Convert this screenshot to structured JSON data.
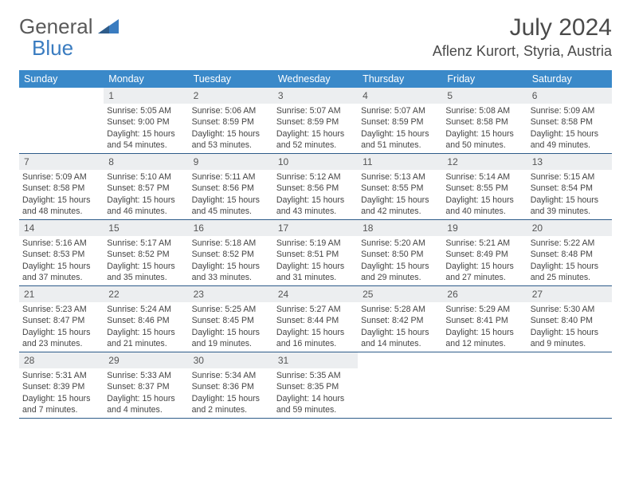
{
  "logo": {
    "text1": "General",
    "text2": "Blue"
  },
  "title": "July 2024",
  "location": "Aflenz Kurort, Styria, Austria",
  "colors": {
    "header_bg": "#3a89c9",
    "header_text": "#ffffff",
    "daynum_bg": "#eceef0",
    "border": "#2e5c8a",
    "logo_gray": "#5a5a5a",
    "logo_blue": "#3a7cc0"
  },
  "weekdays": [
    "Sunday",
    "Monday",
    "Tuesday",
    "Wednesday",
    "Thursday",
    "Friday",
    "Saturday"
  ],
  "weeks": [
    [
      null,
      {
        "n": "1",
        "sr": "Sunrise: 5:05 AM",
        "ss": "Sunset: 9:00 PM",
        "dl": "Daylight: 15 hours and 54 minutes."
      },
      {
        "n": "2",
        "sr": "Sunrise: 5:06 AM",
        "ss": "Sunset: 8:59 PM",
        "dl": "Daylight: 15 hours and 53 minutes."
      },
      {
        "n": "3",
        "sr": "Sunrise: 5:07 AM",
        "ss": "Sunset: 8:59 PM",
        "dl": "Daylight: 15 hours and 52 minutes."
      },
      {
        "n": "4",
        "sr": "Sunrise: 5:07 AM",
        "ss": "Sunset: 8:59 PM",
        "dl": "Daylight: 15 hours and 51 minutes."
      },
      {
        "n": "5",
        "sr": "Sunrise: 5:08 AM",
        "ss": "Sunset: 8:58 PM",
        "dl": "Daylight: 15 hours and 50 minutes."
      },
      {
        "n": "6",
        "sr": "Sunrise: 5:09 AM",
        "ss": "Sunset: 8:58 PM",
        "dl": "Daylight: 15 hours and 49 minutes."
      }
    ],
    [
      {
        "n": "7",
        "sr": "Sunrise: 5:09 AM",
        "ss": "Sunset: 8:58 PM",
        "dl": "Daylight: 15 hours and 48 minutes."
      },
      {
        "n": "8",
        "sr": "Sunrise: 5:10 AM",
        "ss": "Sunset: 8:57 PM",
        "dl": "Daylight: 15 hours and 46 minutes."
      },
      {
        "n": "9",
        "sr": "Sunrise: 5:11 AM",
        "ss": "Sunset: 8:56 PM",
        "dl": "Daylight: 15 hours and 45 minutes."
      },
      {
        "n": "10",
        "sr": "Sunrise: 5:12 AM",
        "ss": "Sunset: 8:56 PM",
        "dl": "Daylight: 15 hours and 43 minutes."
      },
      {
        "n": "11",
        "sr": "Sunrise: 5:13 AM",
        "ss": "Sunset: 8:55 PM",
        "dl": "Daylight: 15 hours and 42 minutes."
      },
      {
        "n": "12",
        "sr": "Sunrise: 5:14 AM",
        "ss": "Sunset: 8:55 PM",
        "dl": "Daylight: 15 hours and 40 minutes."
      },
      {
        "n": "13",
        "sr": "Sunrise: 5:15 AM",
        "ss": "Sunset: 8:54 PM",
        "dl": "Daylight: 15 hours and 39 minutes."
      }
    ],
    [
      {
        "n": "14",
        "sr": "Sunrise: 5:16 AM",
        "ss": "Sunset: 8:53 PM",
        "dl": "Daylight: 15 hours and 37 minutes."
      },
      {
        "n": "15",
        "sr": "Sunrise: 5:17 AM",
        "ss": "Sunset: 8:52 PM",
        "dl": "Daylight: 15 hours and 35 minutes."
      },
      {
        "n": "16",
        "sr": "Sunrise: 5:18 AM",
        "ss": "Sunset: 8:52 PM",
        "dl": "Daylight: 15 hours and 33 minutes."
      },
      {
        "n": "17",
        "sr": "Sunrise: 5:19 AM",
        "ss": "Sunset: 8:51 PM",
        "dl": "Daylight: 15 hours and 31 minutes."
      },
      {
        "n": "18",
        "sr": "Sunrise: 5:20 AM",
        "ss": "Sunset: 8:50 PM",
        "dl": "Daylight: 15 hours and 29 minutes."
      },
      {
        "n": "19",
        "sr": "Sunrise: 5:21 AM",
        "ss": "Sunset: 8:49 PM",
        "dl": "Daylight: 15 hours and 27 minutes."
      },
      {
        "n": "20",
        "sr": "Sunrise: 5:22 AM",
        "ss": "Sunset: 8:48 PM",
        "dl": "Daylight: 15 hours and 25 minutes."
      }
    ],
    [
      {
        "n": "21",
        "sr": "Sunrise: 5:23 AM",
        "ss": "Sunset: 8:47 PM",
        "dl": "Daylight: 15 hours and 23 minutes."
      },
      {
        "n": "22",
        "sr": "Sunrise: 5:24 AM",
        "ss": "Sunset: 8:46 PM",
        "dl": "Daylight: 15 hours and 21 minutes."
      },
      {
        "n": "23",
        "sr": "Sunrise: 5:25 AM",
        "ss": "Sunset: 8:45 PM",
        "dl": "Daylight: 15 hours and 19 minutes."
      },
      {
        "n": "24",
        "sr": "Sunrise: 5:27 AM",
        "ss": "Sunset: 8:44 PM",
        "dl": "Daylight: 15 hours and 16 minutes."
      },
      {
        "n": "25",
        "sr": "Sunrise: 5:28 AM",
        "ss": "Sunset: 8:42 PM",
        "dl": "Daylight: 15 hours and 14 minutes."
      },
      {
        "n": "26",
        "sr": "Sunrise: 5:29 AM",
        "ss": "Sunset: 8:41 PM",
        "dl": "Daylight: 15 hours and 12 minutes."
      },
      {
        "n": "27",
        "sr": "Sunrise: 5:30 AM",
        "ss": "Sunset: 8:40 PM",
        "dl": "Daylight: 15 hours and 9 minutes."
      }
    ],
    [
      {
        "n": "28",
        "sr": "Sunrise: 5:31 AM",
        "ss": "Sunset: 8:39 PM",
        "dl": "Daylight: 15 hours and 7 minutes."
      },
      {
        "n": "29",
        "sr": "Sunrise: 5:33 AM",
        "ss": "Sunset: 8:37 PM",
        "dl": "Daylight: 15 hours and 4 minutes."
      },
      {
        "n": "30",
        "sr": "Sunrise: 5:34 AM",
        "ss": "Sunset: 8:36 PM",
        "dl": "Daylight: 15 hours and 2 minutes."
      },
      {
        "n": "31",
        "sr": "Sunrise: 5:35 AM",
        "ss": "Sunset: 8:35 PM",
        "dl": "Daylight: 14 hours and 59 minutes."
      },
      null,
      null,
      null
    ]
  ]
}
